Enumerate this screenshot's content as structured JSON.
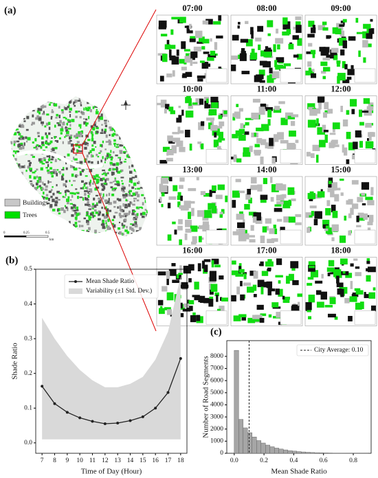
{
  "panel_a": {
    "label": "(a)",
    "times": [
      "07:00",
      "08:00",
      "09:00",
      "10:00",
      "11:00",
      "12:00",
      "13:00",
      "14:00",
      "15:00",
      "16:00",
      "17:00",
      "18:00"
    ],
    "legend": [
      "Buildings",
      "Trees"
    ],
    "scale": [
      "0",
      "0.25",
      "0.5",
      "km"
    ]
  },
  "chart_data": [
    {
      "type": "line",
      "panel": "(b)",
      "x_label": "Time of Day (Hour)",
      "y_label": "Shade Ratio",
      "x": [
        7,
        8,
        9,
        10,
        11,
        12,
        13,
        14,
        15,
        16,
        17,
        18
      ],
      "series": [
        {
          "name": "Mean Shade Ratio",
          "color": "#222222",
          "values": [
            0.163,
            0.113,
            0.088,
            0.072,
            0.062,
            0.055,
            0.057,
            0.064,
            0.075,
            0.1,
            0.145,
            0.243
          ]
        },
        {
          "name": "Variability (±1 Std. Dev.)",
          "color": "#d9d9d9",
          "lower": [
            0.01,
            0.01,
            0.01,
            0.01,
            0.01,
            0.01,
            0.01,
            0.01,
            0.01,
            0.01,
            0.01,
            0.01
          ],
          "upper": [
            0.36,
            0.3,
            0.25,
            0.21,
            0.18,
            0.16,
            0.16,
            0.17,
            0.19,
            0.24,
            0.32,
            0.48
          ]
        }
      ],
      "xlim": [
        6.5,
        18.5
      ],
      "xticks": [
        7,
        8,
        9,
        10,
        11,
        12,
        13,
        14,
        15,
        16,
        17,
        18
      ],
      "ylim": [
        -0.03,
        0.5
      ],
      "yticks": [
        {
          "value": 0,
          "label": "0.0"
        },
        0.1,
        0.2,
        0.3,
        0.4,
        0.5
      ],
      "legend": "upper center"
    },
    {
      "type": "histogram",
      "panel": "(c)",
      "x_label": "Mean Shade Ratio",
      "y_label": "Number of Road Segments",
      "color": "#a6a6a6",
      "bins": [
        0,
        0.03,
        0.06,
        0.09,
        0.12,
        0.15,
        0.18,
        0.21,
        0.24,
        0.27,
        0.3,
        0.33,
        0.36,
        0.39,
        0.42,
        0.45,
        0.48,
        0.51,
        0.54,
        0.57,
        0.6,
        0.63,
        0.66,
        0.69,
        0.72,
        0.75,
        0.78,
        0.81,
        0.84,
        0.87,
        0.9
      ],
      "values": [
        8500,
        2800,
        2100,
        1700,
        1350,
        1050,
        850,
        680,
        540,
        430,
        350,
        280,
        220,
        180,
        140,
        110,
        85,
        65,
        50,
        40,
        30,
        22,
        16,
        12,
        9,
        6,
        4,
        3,
        2,
        1
      ],
      "reference_line": {
        "value": 0.1,
        "label": "City Average: 0.10"
      },
      "xlim": [
        -0.05,
        0.92
      ],
      "xticks": [
        {
          "value": 0,
          "label": "0.0"
        },
        0.2,
        0.4,
        0.6,
        0.8
      ],
      "ylim": [
        0,
        9300
      ],
      "yticks": [
        0,
        1000,
        2000,
        3000,
        4000,
        5000,
        6000,
        7000,
        8000
      ],
      "legend": "upper right"
    }
  ]
}
